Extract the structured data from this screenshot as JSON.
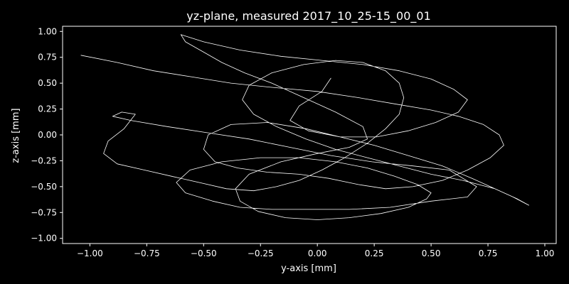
{
  "chart_data": {
    "type": "line",
    "title": "yz-plane, measured 2017_10_25-15_00_01",
    "xlabel": "y-axis [mm]",
    "ylabel": "z-axis [mm]",
    "xlim": [
      -1.12,
      1.05
    ],
    "ylim": [
      -1.05,
      1.05
    ],
    "grid": false,
    "x_ticks": [
      -1.0,
      -0.75,
      -0.5,
      -0.25,
      0.0,
      0.25,
      0.5,
      0.75,
      1.0
    ],
    "x_tick_labels": [
      "−1.00",
      "−0.75",
      "−0.50",
      "−0.25",
      "0.00",
      "0.25",
      "0.50",
      "0.75",
      "1.00"
    ],
    "y_ticks": [
      -1.0,
      -0.75,
      -0.5,
      -0.25,
      0.0,
      0.25,
      0.5,
      0.75,
      1.0
    ],
    "y_tick_labels": [
      "−1.00",
      "−0.75",
      "−0.50",
      "−0.25",
      "0.00",
      "0.25",
      "0.50",
      "0.75",
      "1.00"
    ],
    "colors": {
      "background": "#000000",
      "line": "#ffffff",
      "axes": "#ffffff"
    },
    "series": [
      {
        "x": [
          -1.04,
          -0.88,
          -0.72,
          -0.55,
          -0.38,
          -0.2,
          0.0,
          0.18,
          0.34,
          0.5,
          0.62,
          0.73,
          0.8,
          0.82,
          0.76,
          0.66,
          0.55,
          0.42,
          0.3,
          0.18,
          0.05,
          -0.08,
          -0.22,
          -0.35,
          -0.45,
          -0.5,
          -0.48,
          -0.38,
          -0.22,
          -0.05,
          0.1,
          0.25,
          0.4,
          0.55,
          0.68,
          0.78,
          0.86,
          0.93,
          0.88,
          0.78,
          0.64,
          0.5,
          0.36,
          0.22,
          0.08,
          -0.05,
          -0.18,
          -0.28,
          -0.33,
          -0.3,
          -0.2,
          -0.06,
          0.08,
          0.2,
          0.3,
          0.36,
          0.38,
          0.36,
          0.3,
          0.22,
          0.12,
          0.02,
          -0.08,
          -0.18,
          -0.28,
          -0.4,
          -0.52,
          -0.64,
          -0.76,
          -0.88,
          -0.94,
          -0.92,
          -0.85,
          -0.8,
          -0.86,
          -0.9,
          -0.82,
          -0.66,
          -0.48,
          -0.3,
          -0.12,
          0.06,
          0.24,
          0.42,
          0.58,
          0.7,
          0.66,
          0.5,
          0.32,
          0.14,
          -0.04,
          -0.2,
          -0.34,
          -0.46,
          -0.58,
          -0.62,
          -0.56,
          -0.42,
          -0.25,
          -0.08,
          0.08,
          0.22,
          0.34,
          0.44,
          0.5,
          0.48,
          0.4,
          0.28,
          0.14,
          0.0,
          -0.14,
          -0.26,
          -0.34,
          -0.36,
          -0.3,
          -0.16,
          0.0,
          0.14,
          0.22,
          0.2,
          0.08,
          -0.06,
          -0.2,
          -0.32,
          -0.42,
          -0.5,
          -0.58,
          -0.6,
          -0.5,
          -0.34,
          -0.16,
          0.02,
          0.2,
          0.36,
          0.5,
          0.6,
          0.66,
          0.62,
          0.52,
          0.4,
          0.26,
          0.1,
          -0.04,
          -0.12,
          -0.08,
          0.02,
          0.06
        ],
        "y": [
          0.77,
          0.7,
          0.62,
          0.56,
          0.5,
          0.46,
          0.42,
          0.36,
          0.3,
          0.24,
          0.18,
          0.1,
          0.0,
          -0.1,
          -0.22,
          -0.34,
          -0.44,
          -0.5,
          -0.52,
          -0.48,
          -0.42,
          -0.38,
          -0.36,
          -0.32,
          -0.26,
          -0.14,
          0.0,
          0.1,
          0.12,
          0.06,
          -0.02,
          -0.1,
          -0.2,
          -0.3,
          -0.42,
          -0.52,
          -0.6,
          -0.68,
          -0.62,
          -0.52,
          -0.44,
          -0.38,
          -0.3,
          -0.22,
          -0.14,
          -0.04,
          0.08,
          0.2,
          0.34,
          0.48,
          0.6,
          0.68,
          0.72,
          0.7,
          0.62,
          0.5,
          0.36,
          0.2,
          0.06,
          -0.08,
          -0.22,
          -0.34,
          -0.44,
          -0.5,
          -0.54,
          -0.52,
          -0.46,
          -0.4,
          -0.34,
          -0.28,
          -0.18,
          -0.06,
          0.06,
          0.2,
          0.22,
          0.18,
          0.14,
          0.08,
          0.02,
          -0.04,
          -0.12,
          -0.2,
          -0.26,
          -0.3,
          -0.34,
          -0.5,
          -0.6,
          -0.64,
          -0.7,
          -0.72,
          -0.72,
          -0.72,
          -0.7,
          -0.64,
          -0.56,
          -0.46,
          -0.34,
          -0.26,
          -0.22,
          -0.22,
          -0.26,
          -0.32,
          -0.4,
          -0.48,
          -0.56,
          -0.62,
          -0.7,
          -0.76,
          -0.8,
          -0.82,
          -0.8,
          -0.74,
          -0.64,
          -0.52,
          -0.38,
          -0.26,
          -0.18,
          -0.12,
          -0.04,
          0.08,
          0.22,
          0.36,
          0.5,
          0.6,
          0.7,
          0.8,
          0.9,
          0.97,
          0.9,
          0.82,
          0.76,
          0.72,
          0.68,
          0.62,
          0.54,
          0.44,
          0.34,
          0.22,
          0.12,
          0.04,
          -0.02,
          -0.02,
          0.04,
          0.14,
          0.28,
          0.42,
          0.55
        ]
      }
    ]
  }
}
